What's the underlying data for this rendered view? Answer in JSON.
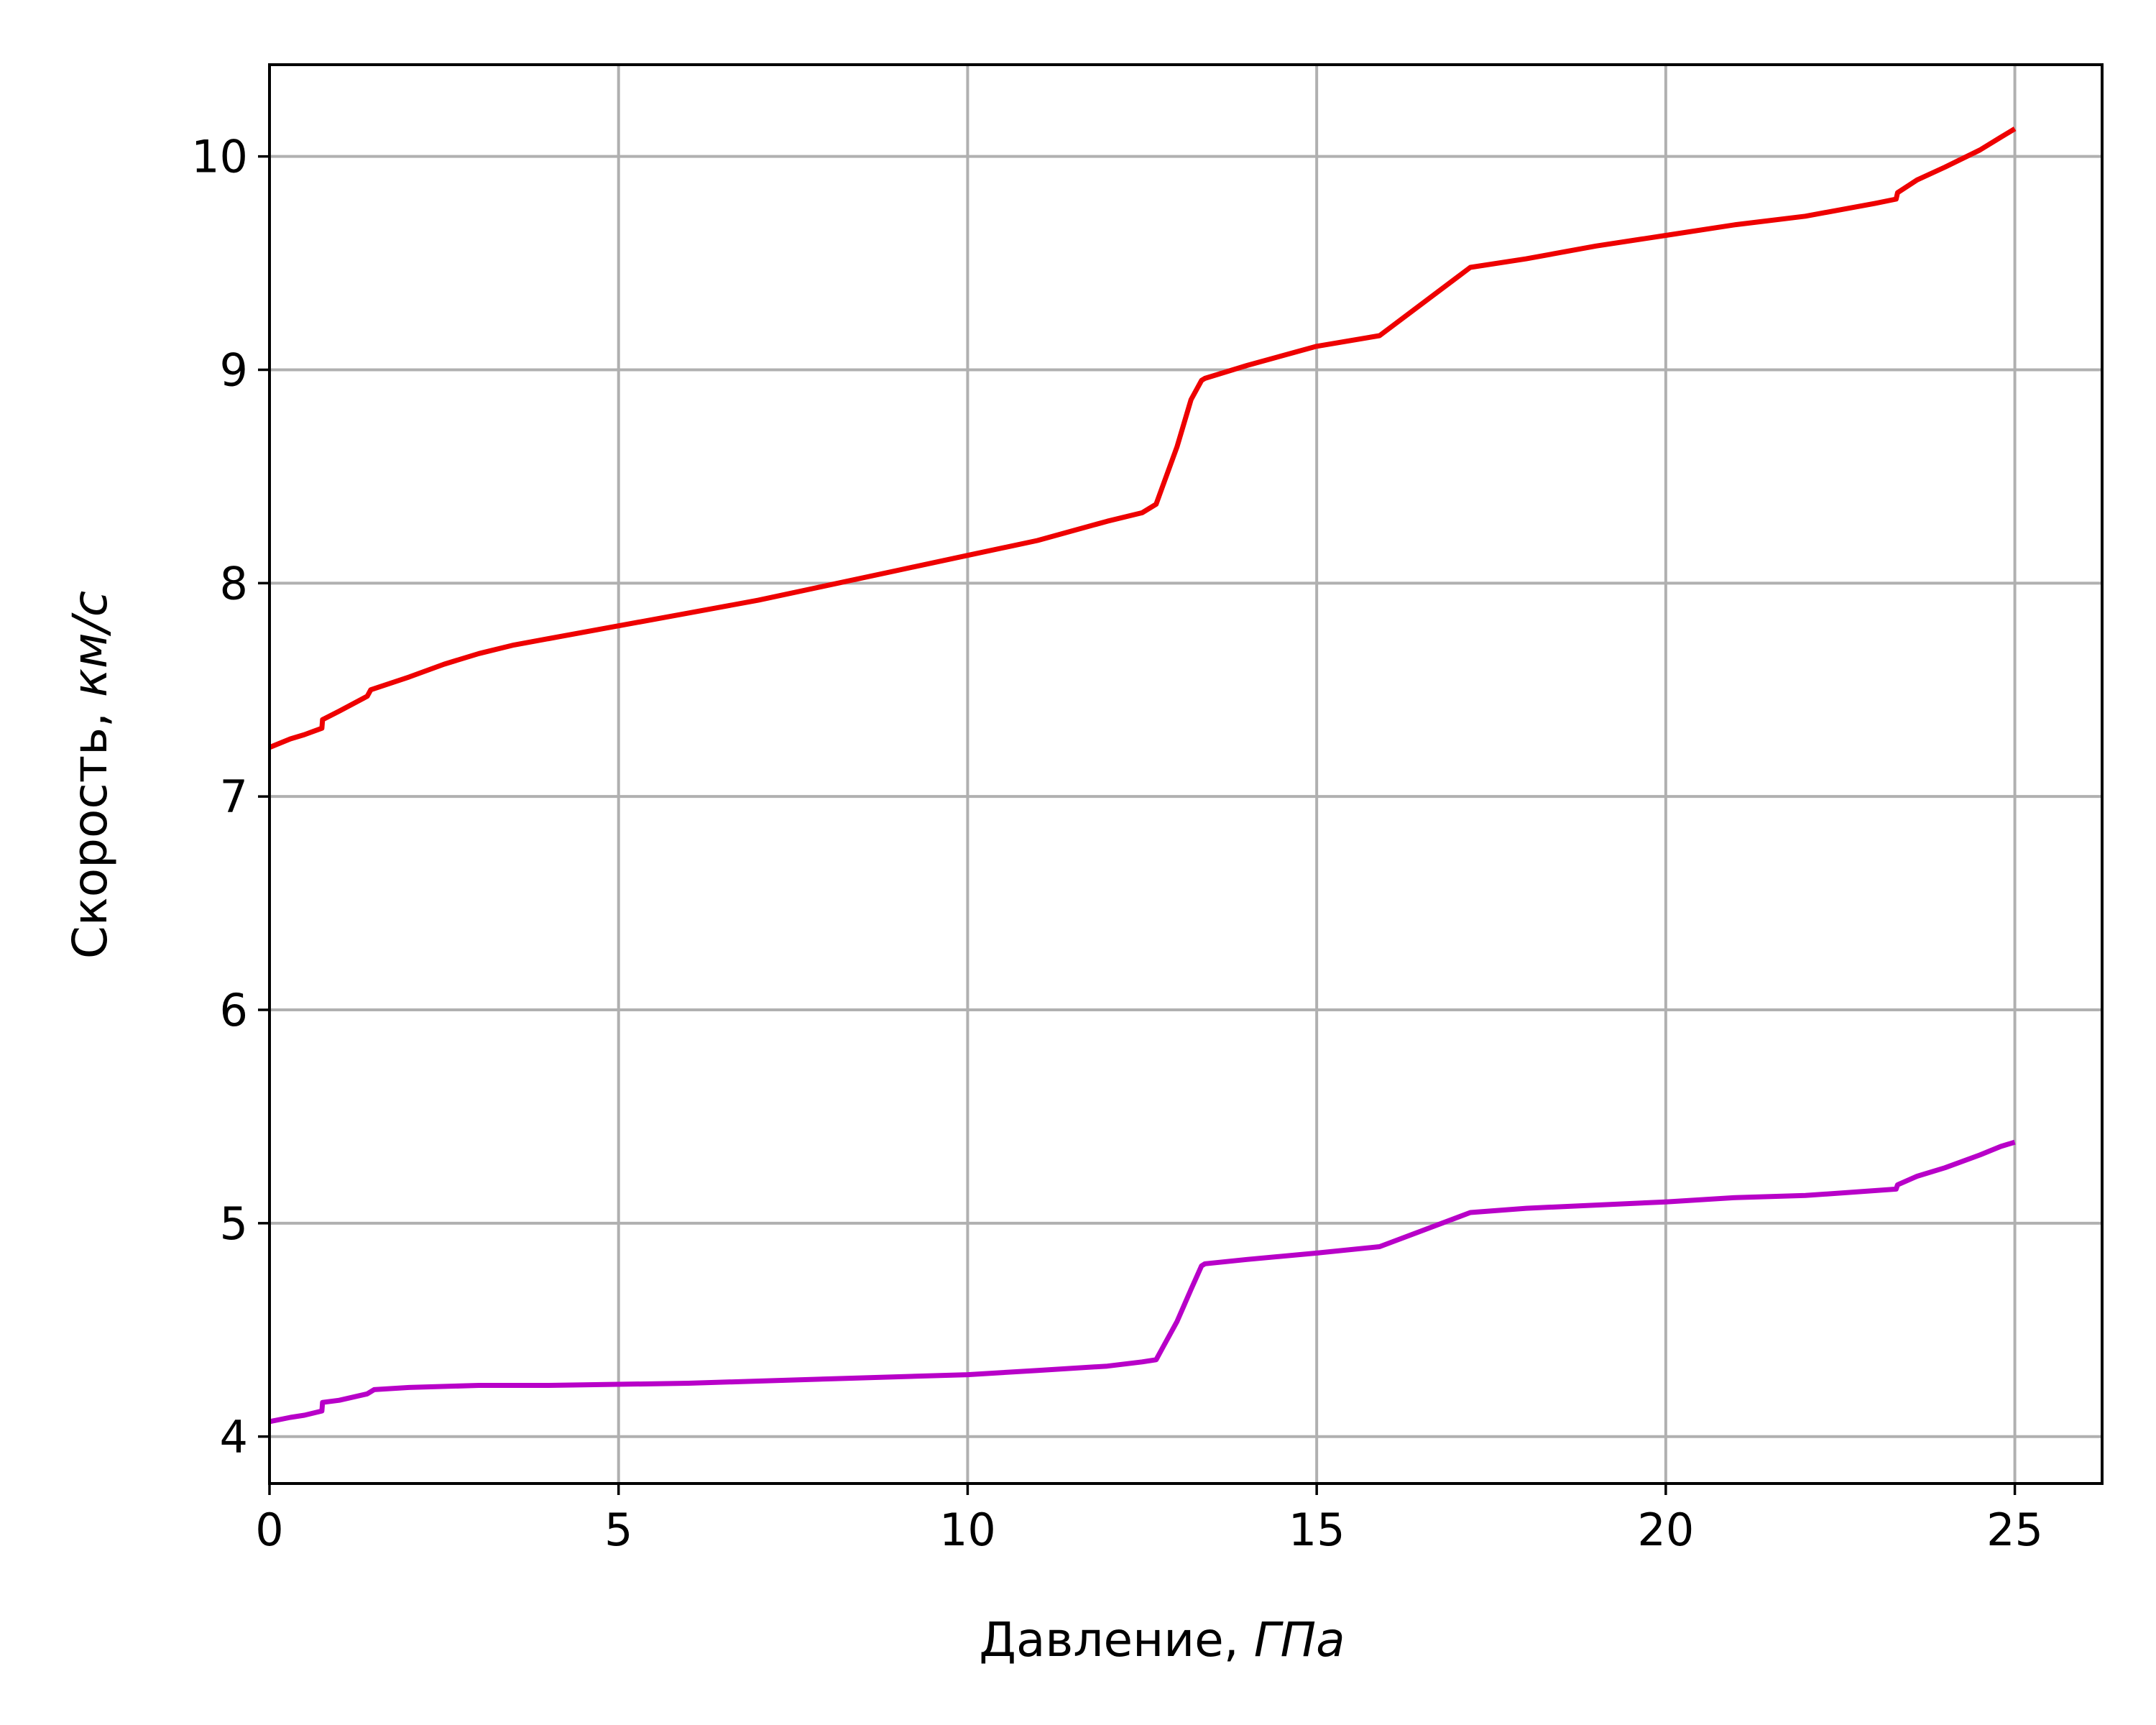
{
  "chart_data": {
    "type": "line",
    "title": "",
    "xlabel": {
      "main": "Давление, ",
      "unit": "ГПа"
    },
    "ylabel": {
      "main": "Скорость, ",
      "unit": "км/с"
    },
    "xlim": [
      0,
      26.25
    ],
    "ylim": [
      3.78,
      10.43
    ],
    "xticks": [
      0,
      5,
      10,
      15,
      20,
      25
    ],
    "xtick_labels": [
      "0",
      "5",
      "10",
      "15",
      "20",
      "25"
    ],
    "yticks": [
      4,
      5,
      6,
      7,
      8,
      9,
      10
    ],
    "ytick_labels": [
      "4",
      "5",
      "6",
      "7",
      "8",
      "9",
      "10"
    ],
    "grid": true,
    "legend": "none",
    "series": [
      {
        "color": "#ee0000",
        "x": [
          0,
          0.3,
          0.5,
          0.75,
          0.76,
          1.0,
          1.4,
          1.45,
          2.0,
          2.5,
          3.0,
          3.5,
          4.0,
          5.0,
          6.0,
          7.0,
          8.0,
          9.0,
          10.0,
          11.0,
          12.0,
          12.5,
          12.7,
          12.8,
          13.0,
          13.2,
          13.35,
          13.4,
          14.0,
          15.0,
          15.9,
          17.2,
          18.0,
          19.0,
          20.0,
          21.0,
          22.0,
          23.0,
          23.3,
          23.32,
          23.6,
          24.0,
          24.5,
          24.8,
          25.0
        ],
        "y": [
          7.23,
          7.27,
          7.29,
          7.32,
          7.36,
          7.4,
          7.47,
          7.5,
          7.56,
          7.62,
          7.67,
          7.71,
          7.74,
          7.8,
          7.86,
          7.92,
          7.99,
          8.06,
          8.13,
          8.2,
          8.29,
          8.33,
          8.37,
          8.46,
          8.64,
          8.86,
          8.95,
          8.96,
          9.02,
          9.11,
          9.16,
          9.48,
          9.52,
          9.58,
          9.63,
          9.68,
          9.72,
          9.78,
          9.8,
          9.83,
          9.89,
          9.95,
          10.03,
          10.09,
          10.13
        ]
      },
      {
        "color": "#b800c8",
        "x": [
          0,
          0.3,
          0.5,
          0.75,
          0.76,
          1.0,
          1.4,
          1.5,
          2.0,
          3.0,
          4.0,
          6.0,
          8.0,
          10.0,
          11.0,
          12.0,
          12.5,
          12.7,
          12.8,
          13.0,
          13.2,
          13.35,
          13.4,
          14.0,
          15.0,
          15.9,
          17.2,
          18.0,
          20.0,
          21.0,
          22.0,
          23.3,
          23.32,
          23.6,
          24.0,
          24.5,
          24.8,
          25.0
        ],
        "y": [
          4.07,
          4.09,
          4.1,
          4.12,
          4.16,
          4.17,
          4.2,
          4.22,
          4.23,
          4.24,
          4.24,
          4.25,
          4.27,
          4.29,
          4.31,
          4.33,
          4.35,
          4.36,
          4.42,
          4.54,
          4.69,
          4.8,
          4.81,
          4.83,
          4.86,
          4.89,
          5.05,
          5.07,
          5.1,
          5.12,
          5.13,
          5.16,
          5.18,
          5.22,
          5.26,
          5.32,
          5.36,
          5.38
        ]
      }
    ]
  }
}
